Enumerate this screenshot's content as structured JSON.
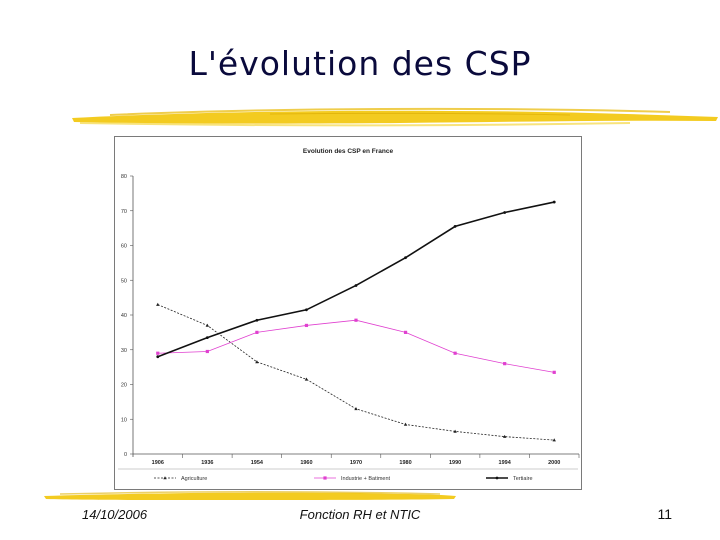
{
  "slide": {
    "title": "L'évolution des CSP",
    "footer_date": "14/10/2006",
    "footer_center": "Fonction RH et NTIC",
    "page_number": "11"
  },
  "colors": {
    "accent_stroke": "#f2c814",
    "title_text": "#0a0a3c",
    "agriculture": "#222222",
    "industrie": "#e040d0",
    "tertiaire": "#111111"
  },
  "chart_data": {
    "type": "line",
    "title": "Evolution des CSP en France",
    "xlabel": "",
    "ylabel": "",
    "ylim": [
      0,
      80
    ],
    "yticks": [
      0,
      10,
      20,
      30,
      40,
      50,
      60,
      70,
      80
    ],
    "categories": [
      "1906",
      "1936",
      "1954",
      "1960",
      "1970",
      "1980",
      "1990",
      "1994",
      "2000"
    ],
    "grid": false,
    "legend_position": "bottom",
    "series": [
      {
        "name": "Agriculture",
        "values": [
          43,
          37,
          26.5,
          21.5,
          13,
          8.5,
          6.5,
          5,
          4
        ]
      },
      {
        "name": "Industrie + Batiment",
        "values": [
          29,
          29.5,
          35,
          37,
          38.5,
          35,
          29,
          26,
          23.5
        ]
      },
      {
        "name": "Tertiaire",
        "values": [
          28,
          33.5,
          38.5,
          41.5,
          48.5,
          56.5,
          65.5,
          69.5,
          72.5
        ]
      }
    ]
  }
}
